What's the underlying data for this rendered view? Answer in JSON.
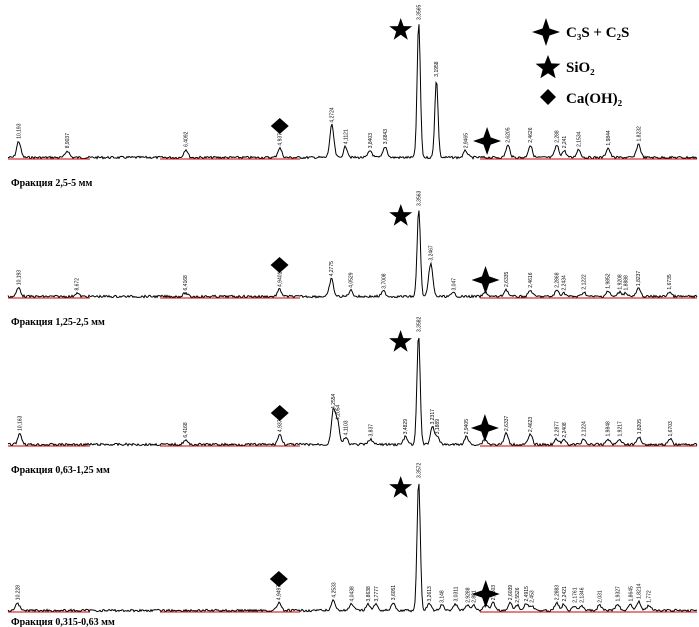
{
  "legend": {
    "items": [
      {
        "symbol": "star4-icon",
        "label": "C₃S + C₂S"
      },
      {
        "symbol": "star5-icon",
        "label": "SiO₂"
      },
      {
        "symbol": "diamond-icon",
        "label": "Ca(OH)₂"
      }
    ]
  },
  "chart_data": {
    "type": "line",
    "title": "",
    "xlabel": "",
    "ylabel": "",
    "x_axis_note": "x-axis is d-spacing in Å, decreasing left to right; no axis ticks are printed",
    "xlim": [
      10.5,
      1.55
    ],
    "grid": false,
    "colors": {
      "trace": "#000000",
      "baseline_segment": "#cc0000"
    },
    "series": [
      {
        "name": "Фракция 2,5-5 мм",
        "peaks": [
          {
            "d": 10.193,
            "label": "10,193",
            "h": 0.12
          },
          {
            "d": 8.9037,
            "label": "8,9037",
            "h": 0.05
          },
          {
            "d": 6.4092,
            "label": "6,4092",
            "h": 0.06
          },
          {
            "d": 4.9374,
            "label": "4,9374",
            "h": 0.07
          },
          {
            "d": 4.2724,
            "label": "4,2724",
            "h": 0.24
          },
          {
            "d": 4.1121,
            "label": "4,1121",
            "h": 0.08
          },
          {
            "d": 3.8403,
            "label": "3,8403",
            "h": 0.05
          },
          {
            "d": 3.6843,
            "label": "3,6843",
            "h": 0.08
          },
          {
            "d": 3.3565,
            "label": "3,3565",
            "h": 1.0
          },
          {
            "d": 3.1958,
            "label": "3,1958",
            "h": 0.58
          },
          {
            "d": 2.9465,
            "label": "2,9465",
            "h": 0.05
          },
          {
            "d": 2.6205,
            "label": "2,6205",
            "h": 0.09
          },
          {
            "d": 2.4626,
            "label": "2,4626",
            "h": 0.09
          },
          {
            "d": 2.288,
            "label": "2,288",
            "h": 0.09
          },
          {
            "d": 2.241,
            "label": "2,241",
            "h": 0.05
          },
          {
            "d": 2.1534,
            "label": "2,1534",
            "h": 0.06
          },
          {
            "d": 1.9844,
            "label": "1,9844",
            "h": 0.07
          },
          {
            "d": 1.8232,
            "label": "1,8232",
            "h": 0.1
          }
        ],
        "markers": [
          {
            "symbol": "diamond-icon",
            "d": 4.9374
          },
          {
            "symbol": "star5-icon",
            "d": 3.3565
          },
          {
            "symbol": "star4-icon",
            "d": 2.7763
          }
        ]
      },
      {
        "name": "Фракция 1,25-2,5 мм",
        "peaks": [
          {
            "d": 10.193,
            "label": "10,193",
            "h": 0.1
          },
          {
            "d": 8.672,
            "label": "8,672",
            "h": 0.04
          },
          {
            "d": 6.4168,
            "label": "6,4168",
            "h": 0.04
          },
          {
            "d": 4.9401,
            "label": "4,9401",
            "h": 0.08
          },
          {
            "d": 4.2775,
            "label": "4,2775",
            "h": 0.2
          },
          {
            "d": 4.0529,
            "label": "4,0529",
            "h": 0.07
          },
          {
            "d": 3.7008,
            "label": "3,7008",
            "h": 0.06
          },
          {
            "d": 3.3563,
            "label": "3,3563",
            "h": 1.0
          },
          {
            "d": 3.2467,
            "label": "3,2467",
            "h": 0.38
          },
          {
            "d": 3.047,
            "label": "3,047",
            "h": 0.04
          },
          {
            "d": 2.7883,
            "label": "2,7883",
            "h": 0.05
          },
          {
            "d": 2.6335,
            "label": "2,6335",
            "h": 0.08
          },
          {
            "d": 2.4616,
            "label": "2,4616",
            "h": 0.07
          },
          {
            "d": 2.2868,
            "label": "2,2868",
            "h": 0.07
          },
          {
            "d": 2.2434,
            "label": "2,2434",
            "h": 0.04
          },
          {
            "d": 2.1222,
            "label": "2,1222",
            "h": 0.05
          },
          {
            "d": 1.9852,
            "label": "1,9852",
            "h": 0.06
          },
          {
            "d": 1.9208,
            "label": "1,9208",
            "h": 0.05
          },
          {
            "d": 1.8888,
            "label": "1,8888",
            "h": 0.04
          },
          {
            "d": 1.8237,
            "label": "1,8237",
            "h": 0.09
          },
          {
            "d": 1.6735,
            "label": "1,6735",
            "h": 0.05
          }
        ],
        "markers": [
          {
            "symbol": "diamond-icon",
            "d": 4.9401
          },
          {
            "symbol": "star5-icon",
            "d": 3.3563
          },
          {
            "symbol": "star4-icon",
            "d": 2.7883
          }
        ]
      },
      {
        "name": "Фракция 0,63-1,25 мм",
        "peaks": [
          {
            "d": 10.163,
            "label": "10,163",
            "h": 0.1
          },
          {
            "d": 6.4168,
            "label": "6,4168",
            "h": 0.04
          },
          {
            "d": 4.9374,
            "label": "4,9374",
            "h": 0.09
          },
          {
            "d": 4.2554,
            "label": "4,2554",
            "h": 0.3
          },
          {
            "d": 4.2054,
            "label": "4,2054",
            "h": 0.2
          },
          {
            "d": 4.1103,
            "label": "4,1103",
            "h": 0.06
          },
          {
            "d": 3.837,
            "label": "3,837",
            "h": 0.05
          },
          {
            "d": 3.4829,
            "label": "3,4829",
            "h": 0.07
          },
          {
            "d": 3.3582,
            "label": "3,3582",
            "h": 1.0
          },
          {
            "d": 3.2317,
            "label": "3,2317",
            "h": 0.16
          },
          {
            "d": 3.1889,
            "label": "3,1889",
            "h": 0.07
          },
          {
            "d": 2.9405,
            "label": "2,9405",
            "h": 0.07
          },
          {
            "d": 2.7931,
            "label": "2,7931",
            "h": 0.05
          },
          {
            "d": 2.6337,
            "label": "2,6337",
            "h": 0.1
          },
          {
            "d": 2.4623,
            "label": "2,4623",
            "h": 0.09
          },
          {
            "d": 2.2877,
            "label": "2,2877",
            "h": 0.05
          },
          {
            "d": 2.2408,
            "label": "2,2408",
            "h": 0.04
          },
          {
            "d": 2.1224,
            "label": "2,1224",
            "h": 0.05
          },
          {
            "d": 1.9848,
            "label": "1,9848",
            "h": 0.05
          },
          {
            "d": 1.9217,
            "label": "1,9217",
            "h": 0.05
          },
          {
            "d": 1.8205,
            "label": "1,8205",
            "h": 0.07
          },
          {
            "d": 1.6703,
            "label": "1,6703",
            "h": 0.05
          }
        ],
        "markers": [
          {
            "symbol": "diamond-icon",
            "d": 4.9374
          },
          {
            "symbol": "star5-icon",
            "d": 3.3582
          },
          {
            "symbol": "star4-icon",
            "d": 2.7931
          }
        ]
      },
      {
        "name": "Фракция 0,315-0,63 мм",
        "peaks": [
          {
            "d": 10.228,
            "label": "10,228",
            "h": 0.06
          },
          {
            "d": 4.9497,
            "label": "4,9497",
            "h": 0.06
          },
          {
            "d": 4.2533,
            "label": "4,2533",
            "h": 0.08
          },
          {
            "d": 4.0438,
            "label": "4,0438",
            "h": 0.05
          },
          {
            "d": 3.8638,
            "label": "3,8638",
            "h": 0.05
          },
          {
            "d": 3.7777,
            "label": "3,7777",
            "h": 0.05
          },
          {
            "d": 3.6051,
            "label": "3,6051",
            "h": 0.06
          },
          {
            "d": 3.3572,
            "label": "3,3572",
            "h": 1.0
          },
          {
            "d": 3.2613,
            "label": "3,2613",
            "h": 0.05
          },
          {
            "d": 3.148,
            "label": "3,148",
            "h": 0.04
          },
          {
            "d": 3.0311,
            "label": "3,0311",
            "h": 0.05
          },
          {
            "d": 2.9288,
            "label": "2,9288",
            "h": 0.04
          },
          {
            "d": 2.881,
            "label": "2,881",
            "h": 0.04
          },
          {
            "d": 2.7867,
            "label": "2,7867",
            "h": 0.05
          },
          {
            "d": 2.7303,
            "label": "2,7303",
            "h": 0.06
          },
          {
            "d": 2.6039,
            "label": "2,6039",
            "h": 0.06
          },
          {
            "d": 2.5526,
            "label": "2,5526",
            "h": 0.04
          },
          {
            "d": 2.4915,
            "label": "2,4915",
            "h": 0.05
          },
          {
            "d": 2.453,
            "label": "2,453",
            "h": 0.04
          },
          {
            "d": 2.2883,
            "label": "2,2883",
            "h": 0.06
          },
          {
            "d": 2.2421,
            "label": "2,2421",
            "h": 0.05
          },
          {
            "d": 2.1761,
            "label": "2,1761",
            "h": 0.04
          },
          {
            "d": 2.1346,
            "label": "2,1346",
            "h": 0.04
          },
          {
            "d": 2.031,
            "label": "2,031",
            "h": 0.04
          },
          {
            "d": 1.9327,
            "label": "1,9327",
            "h": 0.05
          },
          {
            "d": 1.8645,
            "label": "1,8645",
            "h": 0.05
          },
          {
            "d": 1.8214,
            "label": "1,8214",
            "h": 0.07
          },
          {
            "d": 1.772,
            "label": "1,772",
            "h": 0.04
          }
        ],
        "markers": [
          {
            "symbol": "diamond-icon",
            "d": 4.9497
          },
          {
            "symbol": "star5-icon",
            "d": 3.3572
          },
          {
            "symbol": "star4-icon",
            "d": 2.7867
          }
        ]
      }
    ]
  }
}
